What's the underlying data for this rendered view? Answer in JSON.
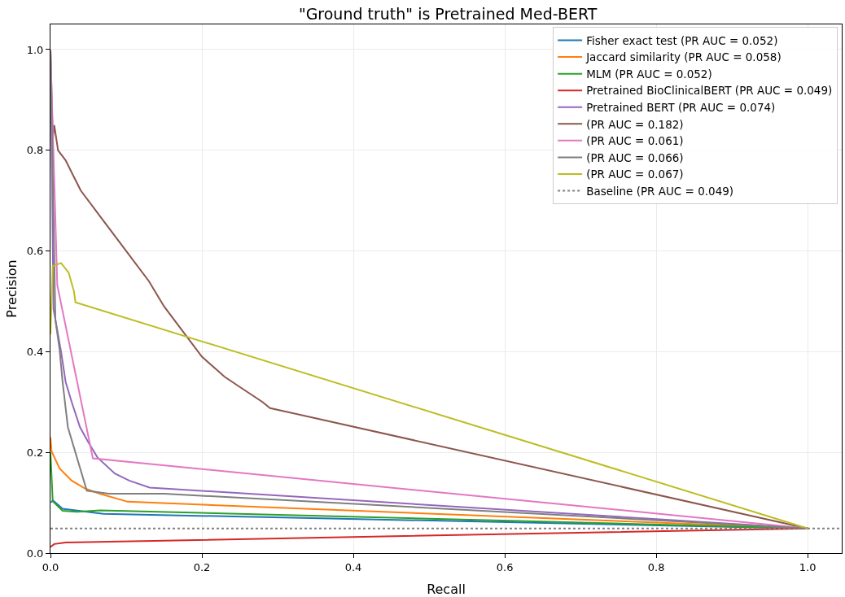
{
  "chart_data": {
    "type": "line",
    "title": "\"Ground truth\" is Pretrained Med-BERT",
    "xlabel": "Recall",
    "ylabel": "Precision",
    "xlim": [
      0,
      1.045
    ],
    "ylim": [
      0,
      1.05
    ],
    "xticks": [
      {
        "value": 0,
        "label": "0.0"
      },
      {
        "value": 0.2,
        "label": "0.2"
      },
      {
        "value": 0.4,
        "label": "0.4"
      },
      {
        "value": 0.6,
        "label": "0.6"
      },
      {
        "value": 0.8,
        "label": "0.8"
      },
      {
        "value": 1,
        "label": "1.0"
      }
    ],
    "yticks": [
      {
        "value": 0,
        "label": "0.0"
      },
      {
        "value": 0.2,
        "label": "0.2"
      },
      {
        "value": 0.4,
        "label": "0.4"
      },
      {
        "value": 0.6,
        "label": "0.6"
      },
      {
        "value": 0.8,
        "label": "0.8"
      },
      {
        "value": 1,
        "label": "1.0"
      }
    ],
    "grid": true,
    "legend": "top right",
    "marker": "none",
    "line_style": "solid",
    "series": [
      {
        "name": "Fisher exact test (PR AUC = 0.052)",
        "color": "#1f77b4",
        "x": [
          0.001,
          0.003,
          0.016,
          0.07,
          1
        ],
        "values": [
          0.1,
          0.105,
          0.088,
          0.078,
          0.049
        ]
      },
      {
        "name": "Jaccard similarity (PR AUC = 0.058)",
        "color": "#ff7f0e",
        "x": [
          0,
          0.0015,
          0.012,
          0.028,
          0.046,
          0.065,
          0.102,
          1
        ],
        "values": [
          0.23,
          0.202,
          0.168,
          0.144,
          0.128,
          0.118,
          0.102,
          0.049
        ]
      },
      {
        "name": "MLM (PR AUC = 0.052)",
        "color": "#2ca02c",
        "x": [
          0,
          0.003,
          0.016,
          0.035,
          0.066,
          1
        ],
        "values": [
          0.2,
          0.103,
          0.084,
          0.082,
          0.085,
          0.049
        ]
      },
      {
        "name": "Pretrained BioClinicalBERT (PR AUC = 0.049)",
        "color": "#d62728",
        "x": [
          0,
          0.005,
          0.02,
          1
        ],
        "values": [
          0.012,
          0.018,
          0.021,
          0.049
        ]
      },
      {
        "name": "Pretrained BERT (PR AUC = 0.074)",
        "color": "#9467bd",
        "x": [
          0,
          0.004,
          0.014,
          0.02,
          0.028,
          0.039,
          0.05,
          0.062,
          0.085,
          0.104,
          0.131,
          1
        ],
        "values": [
          1.0,
          0.485,
          0.4,
          0.34,
          0.3,
          0.25,
          0.22,
          0.19,
          0.158,
          0.144,
          0.13,
          0.049
        ]
      },
      {
        "name": "(PR AUC = 0.182)",
        "color": "#8c564b",
        "x": [
          0,
          0.003,
          0.005,
          0.01,
          0.02,
          0.03,
          0.04,
          0.06,
          0.08,
          0.1,
          0.13,
          0.15,
          0.18,
          0.2,
          0.23,
          0.25,
          0.28,
          0.29,
          1
        ],
        "values": [
          1.0,
          0.82,
          0.85,
          0.8,
          0.78,
          0.75,
          0.72,
          0.68,
          0.64,
          0.6,
          0.54,
          0.49,
          0.43,
          0.39,
          0.35,
          0.33,
          0.3,
          0.288,
          0.049
        ]
      },
      {
        "name": "(PR AUC = 0.061)",
        "color": "#e377c2",
        "x": [
          0,
          0.009,
          0.056,
          1
        ],
        "values": [
          1.0,
          0.532,
          0.188,
          0.049
        ]
      },
      {
        "name": "(PR AUC = 0.066)",
        "color": "#7f7f7f",
        "x": [
          0,
          0.0065,
          0.012,
          0.016,
          0.023,
          0.048,
          0.077,
          0.15,
          1
        ],
        "values": [
          1.0,
          0.463,
          0.405,
          0.34,
          0.25,
          0.124,
          0.118,
          0.118,
          0.049
        ]
      },
      {
        "name": "(PR AUC = 0.067)",
        "color": "#bcbd22",
        "x": [
          0,
          0.003,
          0.014,
          0.024,
          0.031,
          0.033,
          1
        ],
        "values": [
          0.434,
          0.57,
          0.576,
          0.557,
          0.52,
          0.498,
          0.049
        ]
      },
      {
        "name": "Baseline (PR AUC = 0.049)",
        "color": "#7f7f7f",
        "line_style": "dotted",
        "x": [
          0,
          1.045
        ],
        "values": [
          0.049,
          0.049
        ]
      }
    ]
  }
}
